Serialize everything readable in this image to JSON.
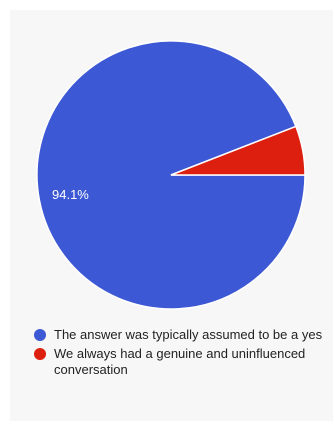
{
  "chart_data": {
    "type": "pie",
    "title": "",
    "slices": [
      {
        "label": "The answer was typically assumed to be a yes",
        "value": 94.1,
        "display_label": "94.1%",
        "color": "#3c58d4"
      },
      {
        "label": "We always had a genuine and uninfluenced conversation",
        "value": 5.9,
        "display_label": "",
        "color": "#dd1f0f"
      }
    ],
    "legend_position": "bottom",
    "label_color": "#ffffff",
    "stroke_color": "#ffffff"
  }
}
